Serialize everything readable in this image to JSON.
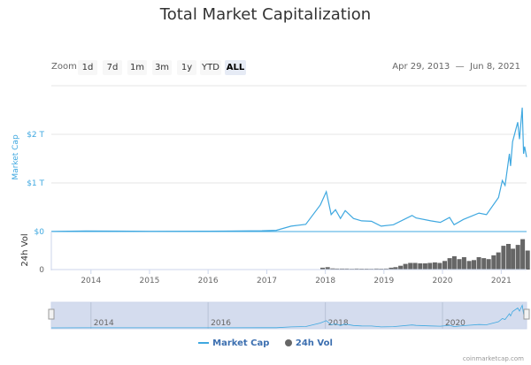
{
  "title": "Total Market Capitalization",
  "zoom": {
    "label": "Zoom",
    "buttons": [
      "1d",
      "7d",
      "1m",
      "3m",
      "1y",
      "YTD",
      "ALL"
    ],
    "active": "ALL"
  },
  "range": {
    "from": "Apr 29, 2013",
    "sep": "—",
    "to": "Jun 8, 2021"
  },
  "legend": {
    "market_cap": "Market Cap",
    "volume": "24h Vol"
  },
  "credit": "coinmarketcap.com",
  "colors": {
    "line": "#3fa8e0",
    "volume": "#666666",
    "navigator": "#ccd6eb"
  },
  "chart_data": {
    "type": "line",
    "title": "Total Market Capitalization",
    "x_range": [
      "2013-04-29",
      "2021-06-08"
    ],
    "x_tick_labels": [
      "2014",
      "2015",
      "2016",
      "2017",
      "2018",
      "2019",
      "2020",
      "2021"
    ],
    "navigator_tick_labels": [
      "2014",
      "2016",
      "2018",
      "2020"
    ],
    "y_axis": {
      "label": "Market Cap",
      "tick_labels": [
        "$0",
        "$1 T",
        "$2 T"
      ],
      "unit": "trillion USD",
      "ylim": [
        0,
        2.6
      ]
    },
    "volume_axis": {
      "label": "24h Vol",
      "tick_labels": [
        "0"
      ],
      "unit": "billion USD",
      "ylim": [
        0,
        400
      ]
    },
    "grid": true,
    "legend_placement": "bottom",
    "series": [
      {
        "name": "Market Cap",
        "type": "line",
        "points": [
          [
            "2013-04-29",
            0.0015
          ],
          [
            "2013-12-01",
            0.013
          ],
          [
            "2014-06-01",
            0.009
          ],
          [
            "2015-01-01",
            0.005
          ],
          [
            "2016-01-01",
            0.007
          ],
          [
            "2016-12-01",
            0.017
          ],
          [
            "2017-03-01",
            0.025
          ],
          [
            "2017-06-01",
            0.11
          ],
          [
            "2017-09-01",
            0.15
          ],
          [
            "2017-12-01",
            0.55
          ],
          [
            "2018-01-07",
            0.82
          ],
          [
            "2018-02-06",
            0.35
          ],
          [
            "2018-03-05",
            0.45
          ],
          [
            "2018-04-05",
            0.27
          ],
          [
            "2018-05-05",
            0.43
          ],
          [
            "2018-06-25",
            0.27
          ],
          [
            "2018-08-15",
            0.22
          ],
          [
            "2018-10-15",
            0.21
          ],
          [
            "2018-12-15",
            0.11
          ],
          [
            "2019-03-01",
            0.14
          ],
          [
            "2019-06-25",
            0.33
          ],
          [
            "2019-07-20",
            0.28
          ],
          [
            "2019-10-20",
            0.22
          ],
          [
            "2019-12-18",
            0.19
          ],
          [
            "2020-02-14",
            0.29
          ],
          [
            "2020-03-13",
            0.14
          ],
          [
            "2020-05-10",
            0.25
          ],
          [
            "2020-08-15",
            0.38
          ],
          [
            "2020-10-01",
            0.35
          ],
          [
            "2020-12-15",
            0.7
          ],
          [
            "2021-01-08",
            1.05
          ],
          [
            "2021-01-25",
            0.95
          ],
          [
            "2021-02-21",
            1.6
          ],
          [
            "2021-02-28",
            1.35
          ],
          [
            "2021-03-13",
            1.85
          ],
          [
            "2021-04-14",
            2.25
          ],
          [
            "2021-04-25",
            1.9
          ],
          [
            "2021-05-12",
            2.55
          ],
          [
            "2021-05-20",
            1.6
          ],
          [
            "2021-05-27",
            1.75
          ],
          [
            "2021-06-08",
            1.53
          ]
        ]
      },
      {
        "name": "24h Vol",
        "type": "column",
        "months": [
          "2017-12",
          "2018-01",
          "2018-02",
          "2018-03",
          "2018-04",
          "2018-05",
          "2018-06",
          "2018-07",
          "2018-08",
          "2018-09",
          "2018-10",
          "2018-11",
          "2018-12",
          "2019-01",
          "2019-02",
          "2019-03",
          "2019-04",
          "2019-05",
          "2019-06",
          "2019-07",
          "2019-08",
          "2019-09",
          "2019-10",
          "2019-11",
          "2019-12",
          "2020-01",
          "2020-02",
          "2020-03",
          "2020-04",
          "2020-05",
          "2020-06",
          "2020-07",
          "2020-08",
          "2020-09",
          "2020-10",
          "2020-11",
          "2020-12",
          "2021-01",
          "2021-02",
          "2021-03",
          "2021-04",
          "2021-05",
          "2021-06"
        ],
        "values": [
          20,
          25,
          12,
          10,
          10,
          10,
          8,
          10,
          9,
          9,
          8,
          10,
          9,
          10,
          20,
          25,
          40,
          60,
          70,
          70,
          65,
          65,
          70,
          75,
          70,
          90,
          120,
          140,
          110,
          130,
          90,
          100,
          130,
          120,
          110,
          150,
          180,
          250,
          270,
          220,
          260,
          320,
          200
        ]
      }
    ]
  }
}
